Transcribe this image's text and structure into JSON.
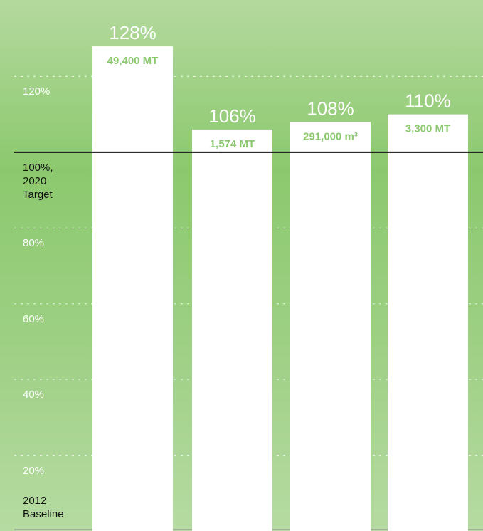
{
  "chart_data": {
    "type": "bar",
    "values": [
      128,
      106,
      108,
      110
    ],
    "value_labels": [
      "128%",
      "106%",
      "108%",
      "110%"
    ],
    "amounts": [
      "49,400 MT",
      "1,574 MT",
      "291,000 m³",
      "3,300 MT"
    ],
    "color": "#ffffff",
    "amount_color": "#8cc870",
    "ylim": [
      0,
      140
    ],
    "yticks": [
      {
        "value": 0,
        "label": "2012 Baseline"
      },
      {
        "value": 20,
        "label": "20%"
      },
      {
        "value": 40,
        "label": "40%"
      },
      {
        "value": 60,
        "label": "60%"
      },
      {
        "value": 80,
        "label": "80%"
      },
      {
        "value": 100,
        "label": "100%, 2020 Target"
      },
      {
        "value": 120,
        "label": "120%"
      }
    ],
    "target_line": 100,
    "grid": true
  }
}
